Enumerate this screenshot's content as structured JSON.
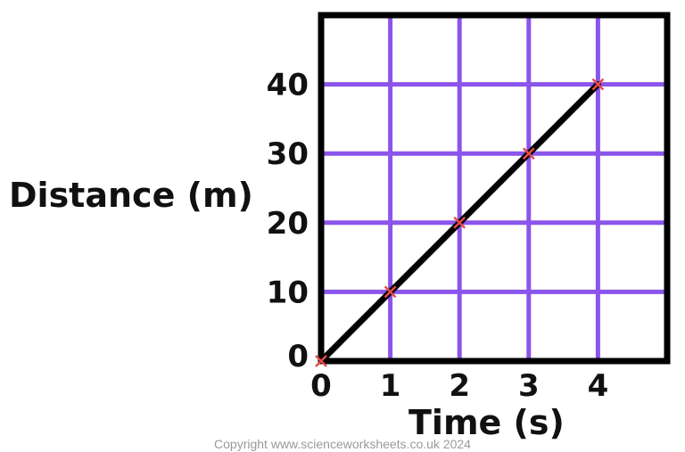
{
  "chart_data": {
    "type": "line",
    "xlabel": "Time (s)",
    "ylabel": "Distance (m)",
    "x_ticks": [
      "0",
      "1",
      "2",
      "3",
      "4"
    ],
    "y_ticks": [
      "0",
      "10",
      "20",
      "30",
      "40"
    ],
    "xlim": [
      0,
      5
    ],
    "ylim": [
      0,
      50
    ],
    "grid": true,
    "series": [
      {
        "x": [
          0,
          1,
          2,
          3,
          4
        ],
        "y": [
          0,
          10,
          20,
          30,
          40
        ]
      }
    ]
  },
  "footer": {
    "copyright": "Copyright www.scienceworksheets.co.uk 2024"
  },
  "colors": {
    "grid": "#8a55ea",
    "frame": "#000000",
    "line": "#000000",
    "marker": "#e84a4a",
    "text": "#111111",
    "copyright": "#9a9a9a"
  }
}
